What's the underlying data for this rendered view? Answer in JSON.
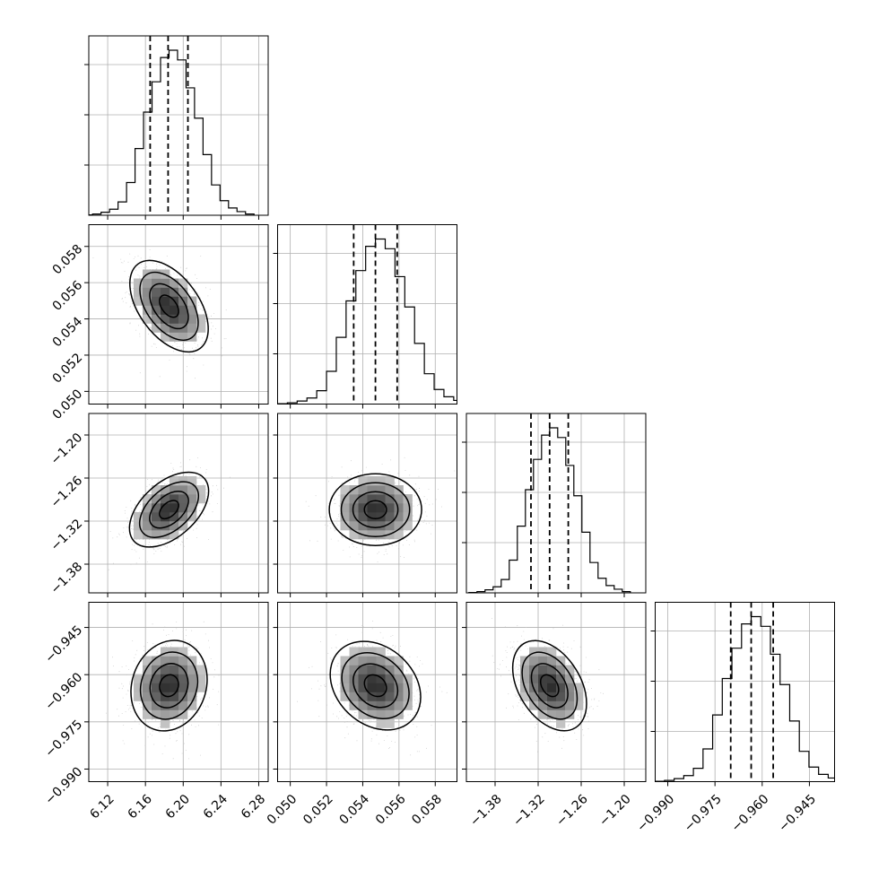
{
  "chart_data": {
    "type": "corner",
    "parameters": [
      {
        "range": [
          6.1,
          6.29
        ],
        "ticks": [
          6.12,
          6.16,
          6.2,
          6.24,
          6.28
        ],
        "tick_labels": [
          "6.12",
          "6.16",
          "6.20",
          "6.24",
          "6.28"
        ],
        "mean": 6.185,
        "sigma": 0.02,
        "quantiles": [
          6.165,
          6.184,
          6.205
        ]
      },
      {
        "range": [
          0.0493,
          0.0592
        ],
        "ticks": [
          0.05,
          0.052,
          0.054,
          0.056,
          0.058
        ],
        "tick_labels": [
          "0.050",
          "0.052",
          "0.054",
          "0.056",
          "0.058"
        ],
        "mean": 0.0547,
        "sigma": 0.0012,
        "quantiles": [
          0.0535,
          0.0547,
          0.0559
        ]
      },
      {
        "range": [
          -1.42,
          -1.17
        ],
        "ticks": [
          -1.38,
          -1.32,
          -1.26,
          -1.2
        ],
        "tick_labels": [
          "−1.38",
          "−1.32",
          "−1.26",
          "−1.20"
        ],
        "mean": -1.304,
        "sigma": 0.025,
        "quantiles": [
          -1.33,
          -1.304,
          -1.278
        ]
      },
      {
        "range": [
          -0.994,
          -0.937
        ],
        "ticks": [
          -0.99,
          -0.975,
          -0.96,
          -0.945
        ],
        "tick_labels": [
          "−0.990",
          "−0.975",
          "−0.960",
          "−0.945"
        ],
        "mean": -0.9635,
        "sigma": 0.0068,
        "quantiles": [
          -0.97,
          -0.9635,
          -0.9565
        ]
      }
    ],
    "histograms": [
      {
        "param": 0,
        "bins": 20,
        "counts": [
          0.3,
          1,
          2.5,
          5,
          11,
          27,
          55,
          85,
          110,
          130,
          136,
          128,
          105,
          80,
          50,
          25,
          12,
          6,
          3,
          1
        ]
      },
      {
        "param": 1,
        "bins": 20,
        "counts": [
          0.3,
          1,
          2.5,
          5,
          11,
          27,
          55,
          85,
          110,
          130,
          136,
          128,
          105,
          80,
          50,
          25,
          12,
          6,
          3,
          1
        ]
      },
      {
        "param": 2,
        "bins": 20,
        "counts": [
          0.3,
          1,
          2.5,
          5,
          11,
          27,
          55,
          85,
          110,
          130,
          136,
          128,
          105,
          80,
          50,
          25,
          12,
          6,
          3,
          1
        ]
      },
      {
        "param": 3,
        "bins": 20,
        "counts": [
          0.3,
          1,
          2.5,
          5,
          11,
          27,
          55,
          85,
          110,
          130,
          136,
          128,
          105,
          80,
          50,
          25,
          12,
          6,
          3,
          1
        ]
      }
    ],
    "correlations": {
      "1-0": -0.45,
      "2-0": 0.45,
      "2-1": 0.0,
      "3-0": 0.1,
      "3-1": -0.2,
      "3-2": -0.35
    },
    "contour_levels_sigma": [
      0.5,
      1.0,
      1.5,
      2.0
    ],
    "grid": true,
    "title": "",
    "xlabel": "",
    "ylabel": ""
  }
}
